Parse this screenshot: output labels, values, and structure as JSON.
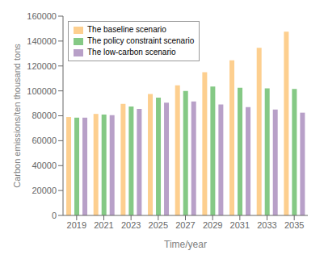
{
  "chart_data": {
    "type": "bar",
    "categories": [
      "2019",
      "2021",
      "2023",
      "2025",
      "2027",
      "2029",
      "2031",
      "2033",
      "2035"
    ],
    "series": [
      {
        "name": "The baseline scenario",
        "color": "#FDCF8F",
        "values": [
          79000,
          81500,
          89500,
          97500,
          104500,
          115000,
          124500,
          134500,
          147500
        ]
      },
      {
        "name": "The policy constraint scenario",
        "color": "#85C985",
        "values": [
          78500,
          81000,
          87500,
          94500,
          100000,
          103500,
          102500,
          102000,
          101500
        ]
      },
      {
        "name": "The low-carbon scenario",
        "color": "#B8A0C8",
        "values": [
          78500,
          80500,
          85500,
          90500,
          91500,
          89000,
          87000,
          85000,
          82500
        ]
      }
    ],
    "xlabel": "Time/year",
    "ylabel": "Carbon emissions/ten thousand tons",
    "ylim": [
      0,
      160000
    ],
    "yticks": [
      0,
      20000,
      40000,
      60000,
      80000,
      100000,
      120000,
      140000,
      160000
    ],
    "grid": false,
    "legend": "upper left"
  }
}
